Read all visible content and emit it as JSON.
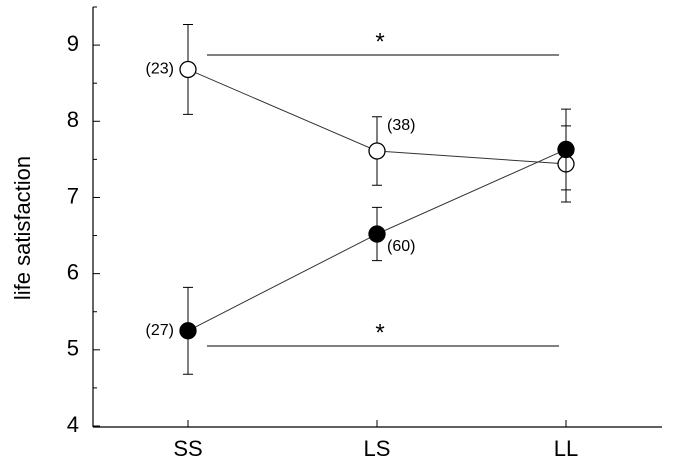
{
  "chart_data": {
    "type": "line",
    "y_label": "life satisfaction",
    "categories": [
      "SS",
      "LS",
      "LL"
    ],
    "ylim": [
      4,
      9.5
    ],
    "yticks": [
      4,
      5,
      6,
      7,
      8,
      9
    ],
    "yminor_ticks": [
      4.5,
      5.5,
      6.5,
      7.5,
      8.5,
      9.5
    ],
    "series": [
      {
        "color": "#ffffff",
        "marker": "open",
        "values": [
          8.68,
          7.61,
          7.44
        ],
        "errors": [
          0.59,
          0.45,
          0.5
        ],
        "labels": [
          "(23)",
          "(38)",
          null
        ]
      },
      {
        "color": "#000000",
        "marker": "filled",
        "values": [
          5.25,
          6.52,
          7.63
        ],
        "errors": [
          0.57,
          0.35,
          0.53
        ],
        "labels": [
          "(27)",
          "(60)",
          null
        ]
      }
    ],
    "annotations": [
      "*",
      "*"
    ]
  }
}
